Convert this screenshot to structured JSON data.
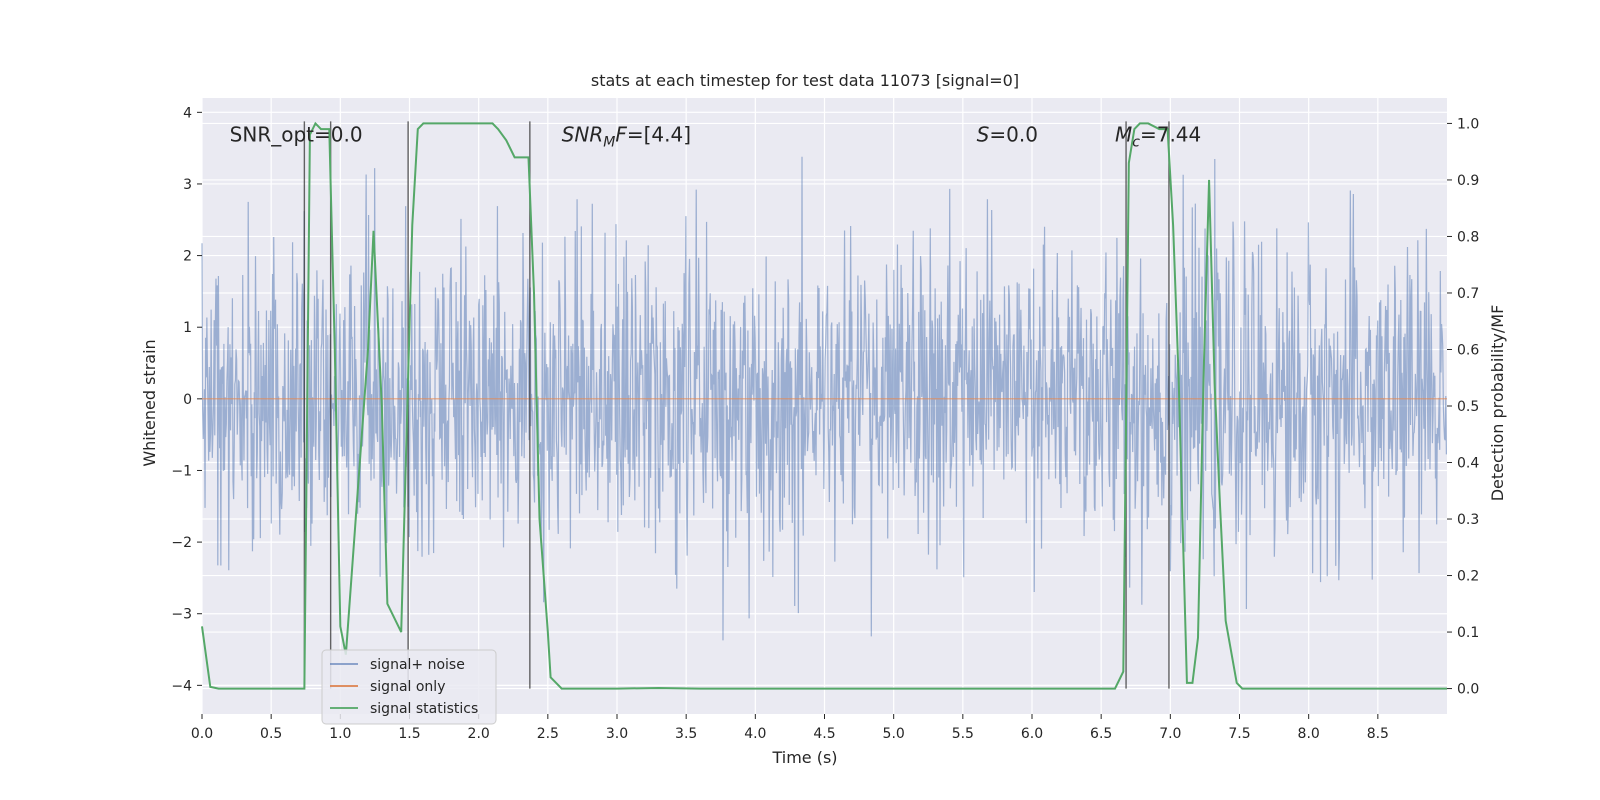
{
  "chart_data": {
    "type": "line",
    "title": "stats at each timestep for test data 11073 [signal=0]",
    "xlabel": "Time (s)",
    "ylabel_left": "Whitened strain",
    "ylabel_right": "Detection probability/MF",
    "xlim": [
      0,
      9.0
    ],
    "ylim_left": [
      -4.4,
      4.2
    ],
    "ylim_right": [
      -0.045,
      1.045
    ],
    "xticks": [
      0.0,
      0.5,
      1.0,
      1.5,
      2.0,
      2.5,
      3.0,
      3.5,
      4.0,
      4.5,
      5.0,
      5.5,
      6.0,
      6.5,
      7.0,
      7.5,
      8.0,
      8.5
    ],
    "xtick_labels": [
      "0.0",
      "0.5",
      "1.0",
      "1.5",
      "2.0",
      "2.5",
      "3.0",
      "3.5",
      "4.0",
      "4.5",
      "5.0",
      "5.5",
      "6.0",
      "6.5",
      "7.0",
      "7.5",
      "8.0",
      "8.5"
    ],
    "yticks_left": [
      -4,
      -3,
      -2,
      -1,
      0,
      1,
      2,
      3,
      4
    ],
    "ytick_labels_left": [
      "−4",
      "−3",
      "−2",
      "−1",
      "0",
      "1",
      "2",
      "3",
      "4"
    ],
    "yticks_right": [
      0.0,
      0.1,
      0.2,
      0.3,
      0.4,
      0.5,
      0.6,
      0.7,
      0.8,
      0.9,
      1.0
    ],
    "ytick_labels_right": [
      "0.0",
      "0.1",
      "0.2",
      "0.3",
      "0.4",
      "0.5",
      "0.6",
      "0.7",
      "0.8",
      "0.9",
      "1.0"
    ],
    "grid": true,
    "legend_placement": "lower-left",
    "series": [
      {
        "name": "signal+ noise",
        "kind": "noise",
        "color": "#4C72B0",
        "envelope_sigma": 1.0,
        "samples": 2048,
        "duration": 9.0
      },
      {
        "name": "signal only",
        "kind": "hline",
        "color": "#DD8452",
        "y": 0
      },
      {
        "name": "signal statistics",
        "kind": "line",
        "axis": "right",
        "color": "#55A868",
        "x": [
          0.0,
          0.06,
          0.12,
          0.2,
          0.74,
          0.78,
          0.82,
          0.86,
          0.92,
          0.96,
          1.0,
          1.04,
          1.2,
          1.24,
          1.3,
          1.34,
          1.44,
          1.52,
          1.56,
          1.6,
          2.1,
          2.14,
          2.2,
          2.26,
          2.3,
          2.36,
          2.4,
          2.44,
          2.5,
          2.52,
          2.56,
          2.6,
          3.0,
          3.3,
          3.6,
          4.0,
          5.0,
          6.0,
          6.6,
          6.66,
          6.7,
          6.74,
          6.78,
          6.84,
          6.92,
          6.98,
          7.02,
          7.06,
          7.12,
          7.16,
          7.2,
          7.24,
          7.28,
          7.32,
          7.36,
          7.4,
          7.48,
          7.52,
          8.0,
          8.5,
          9.0
        ],
        "y": [
          0.11,
          0.003,
          0.0,
          0.0,
          0.0,
          0.98,
          1.0,
          0.99,
          0.99,
          0.6,
          0.11,
          0.06,
          0.6,
          0.81,
          0.5,
          0.15,
          0.1,
          0.82,
          0.99,
          1.0,
          1.0,
          0.99,
          0.97,
          0.94,
          0.94,
          0.94,
          0.7,
          0.3,
          0.1,
          0.02,
          0.01,
          0.0,
          0.0,
          0.001,
          0.0,
          0.0,
          0.0,
          0.0,
          0.0,
          0.03,
          0.93,
          0.99,
          1.0,
          1.0,
          0.99,
          0.99,
          0.82,
          0.55,
          0.01,
          0.01,
          0.09,
          0.55,
          0.9,
          0.54,
          0.32,
          0.12,
          0.01,
          0.0,
          0.0,
          0.0,
          0.0
        ]
      }
    ],
    "vlines": [
      0.74,
      0.93,
      1.49,
      2.37,
      6.68,
      6.99
    ],
    "annotations": [
      {
        "text": "SNR_opt=0.0",
        "x": 0.2,
        "y_frac": 0.962
      },
      {
        "text": "SNR_MF=[4.4]",
        "x": 2.6,
        "y_frac": 0.962,
        "math": "snr"
      },
      {
        "text": "S=0.0",
        "x": 5.6,
        "y_frac": 0.962,
        "math": "s"
      },
      {
        "text": "M_c=7.44",
        "x": 6.6,
        "y_frac": 0.962,
        "math": "mc"
      }
    ]
  }
}
